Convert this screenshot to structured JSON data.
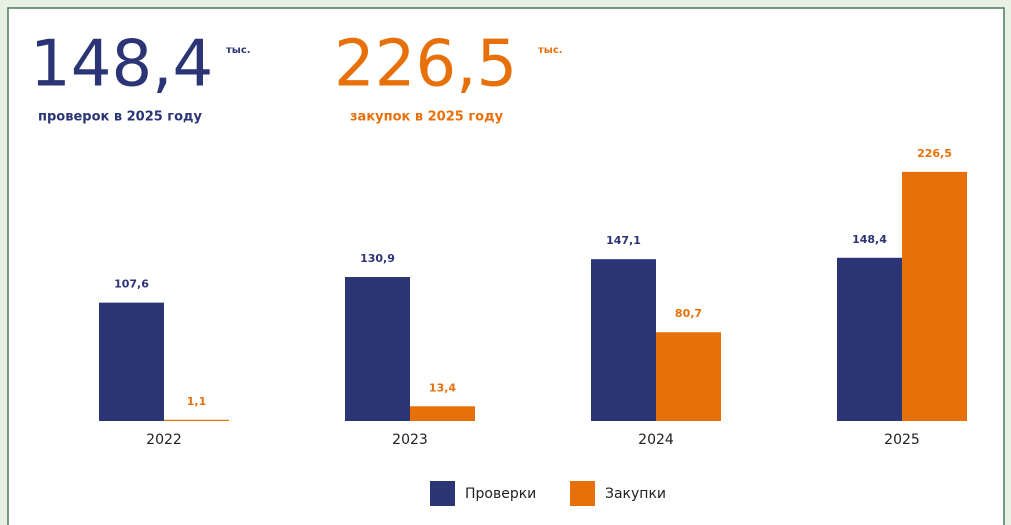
{
  "header": {
    "left": {
      "value": "148,4",
      "unit": "тыс.",
      "caption": "проверок в 2025 году"
    },
    "right": {
      "value": "226,5",
      "unit": "тыс.",
      "caption": "закупок в 2025 году"
    }
  },
  "chart_data": {
    "type": "bar",
    "categories": [
      "2022",
      "2023",
      "2024",
      "2025"
    ],
    "series": [
      {
        "name": "Проверки",
        "color": "#2b3575",
        "values": [
          107.6,
          130.9,
          147.1,
          148.4
        ],
        "value_labels": [
          "107,6",
          "130,9",
          "147,1",
          "148,4"
        ]
      },
      {
        "name": "Закупки",
        "color": "#e8700a",
        "values": [
          1.1,
          13.4,
          80.7,
          226.5
        ],
        "value_labels": [
          "1,1",
          "13,4",
          "80,7",
          "226,5"
        ]
      }
    ],
    "ylim": [
      0,
      250
    ]
  }
}
